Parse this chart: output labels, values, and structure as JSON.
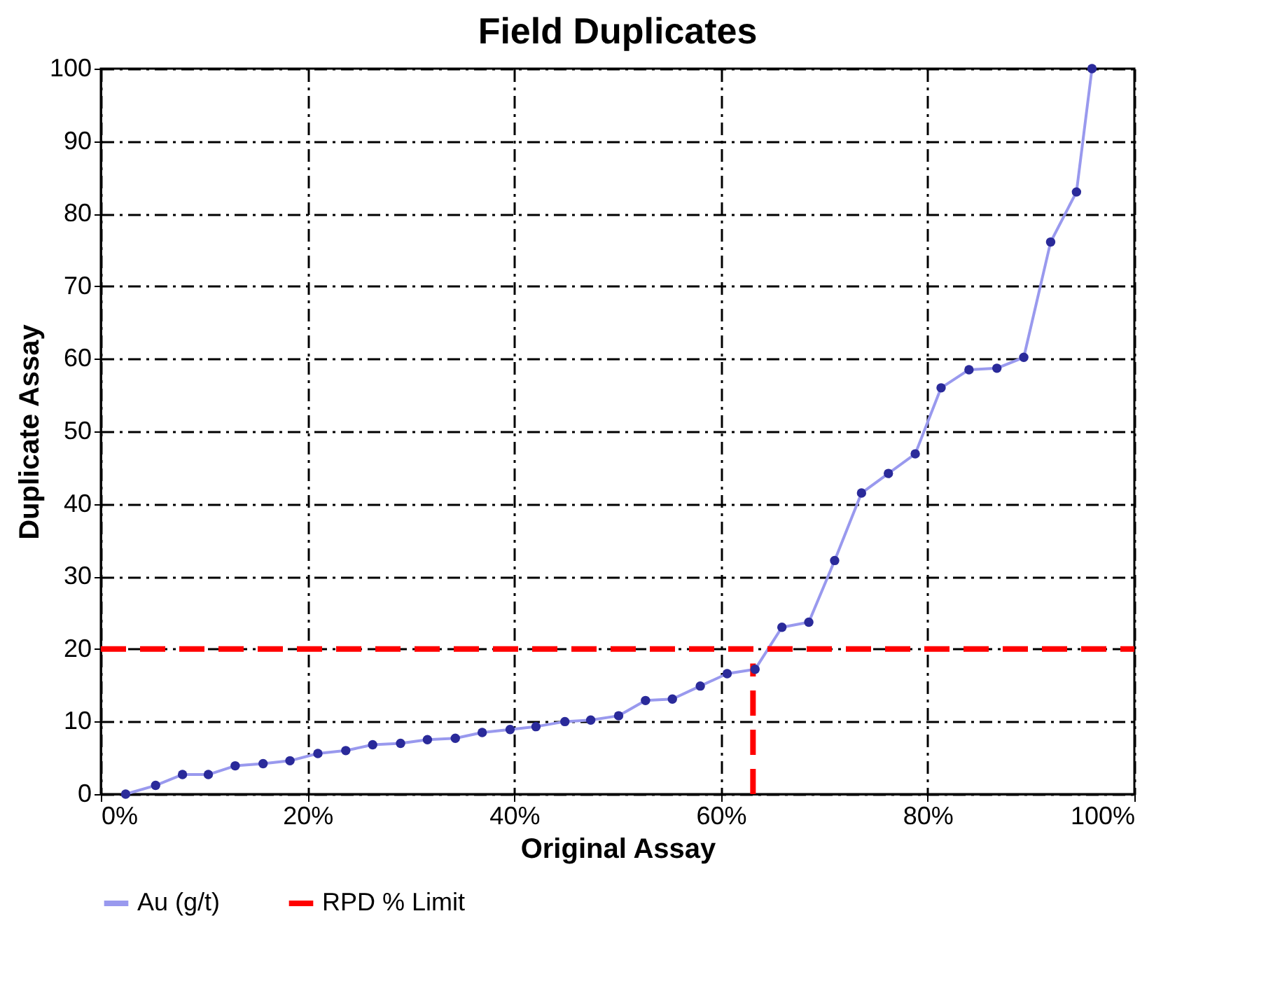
{
  "chart_data": {
    "type": "line",
    "title": "Field Duplicates",
    "xlabel": "Original Assay",
    "ylabel": "Duplicate Assay",
    "xlim": [
      0,
      100
    ],
    "xticks": [
      {
        "value": 0,
        "label": "0%"
      },
      {
        "value": 20,
        "label": "20%"
      },
      {
        "value": 40,
        "label": "40%"
      },
      {
        "value": 60,
        "label": "60%"
      },
      {
        "value": 80,
        "label": "80%"
      },
      {
        "value": 100,
        "label": "100%"
      }
    ],
    "ylim": [
      0,
      100
    ],
    "yticks": [
      0,
      10,
      20,
      30,
      40,
      50,
      60,
      70,
      80,
      90,
      100
    ],
    "grid": true,
    "legend": "bottom",
    "series": [
      {
        "name": "Au (g/t)",
        "color": "#9999ee",
        "marker": "circle",
        "line_style": "solid",
        "x": [
          2.4,
          5.3,
          7.9,
          10.4,
          13,
          15.7,
          18.3,
          21,
          23.7,
          26.3,
          29,
          31.6,
          34.3,
          36.9,
          39.6,
          42.1,
          44.9,
          47.4,
          50.1,
          52.7,
          55.3,
          58,
          60.6,
          63.3,
          65.9,
          68.5,
          71,
          73.6,
          76.2,
          78.8,
          81.3,
          84,
          86.7,
          89.3,
          91.9,
          94.4,
          95.9
        ],
        "values": [
          0,
          1.2,
          2.7,
          2.7,
          3.9,
          4.2,
          4.6,
          5.6,
          6,
          6.8,
          7,
          7.5,
          7.7,
          8.5,
          8.9,
          9.3,
          10,
          10.2,
          10.8,
          12.9,
          13.1,
          14.9,
          16.6,
          17.2,
          23,
          23.7,
          32.2,
          41.5,
          44.2,
          46.9,
          56,
          58.5,
          58.7,
          60.2,
          76.1,
          83,
          100
        ]
      },
      {
        "name": "RPD % Limit",
        "color": "#ff0000",
        "marker": "none",
        "line_style": "dashed",
        "x": [
          0,
          100,
          null,
          63.1,
          63.1
        ],
        "values": [
          20,
          20,
          null,
          0,
          18
        ]
      }
    ]
  }
}
